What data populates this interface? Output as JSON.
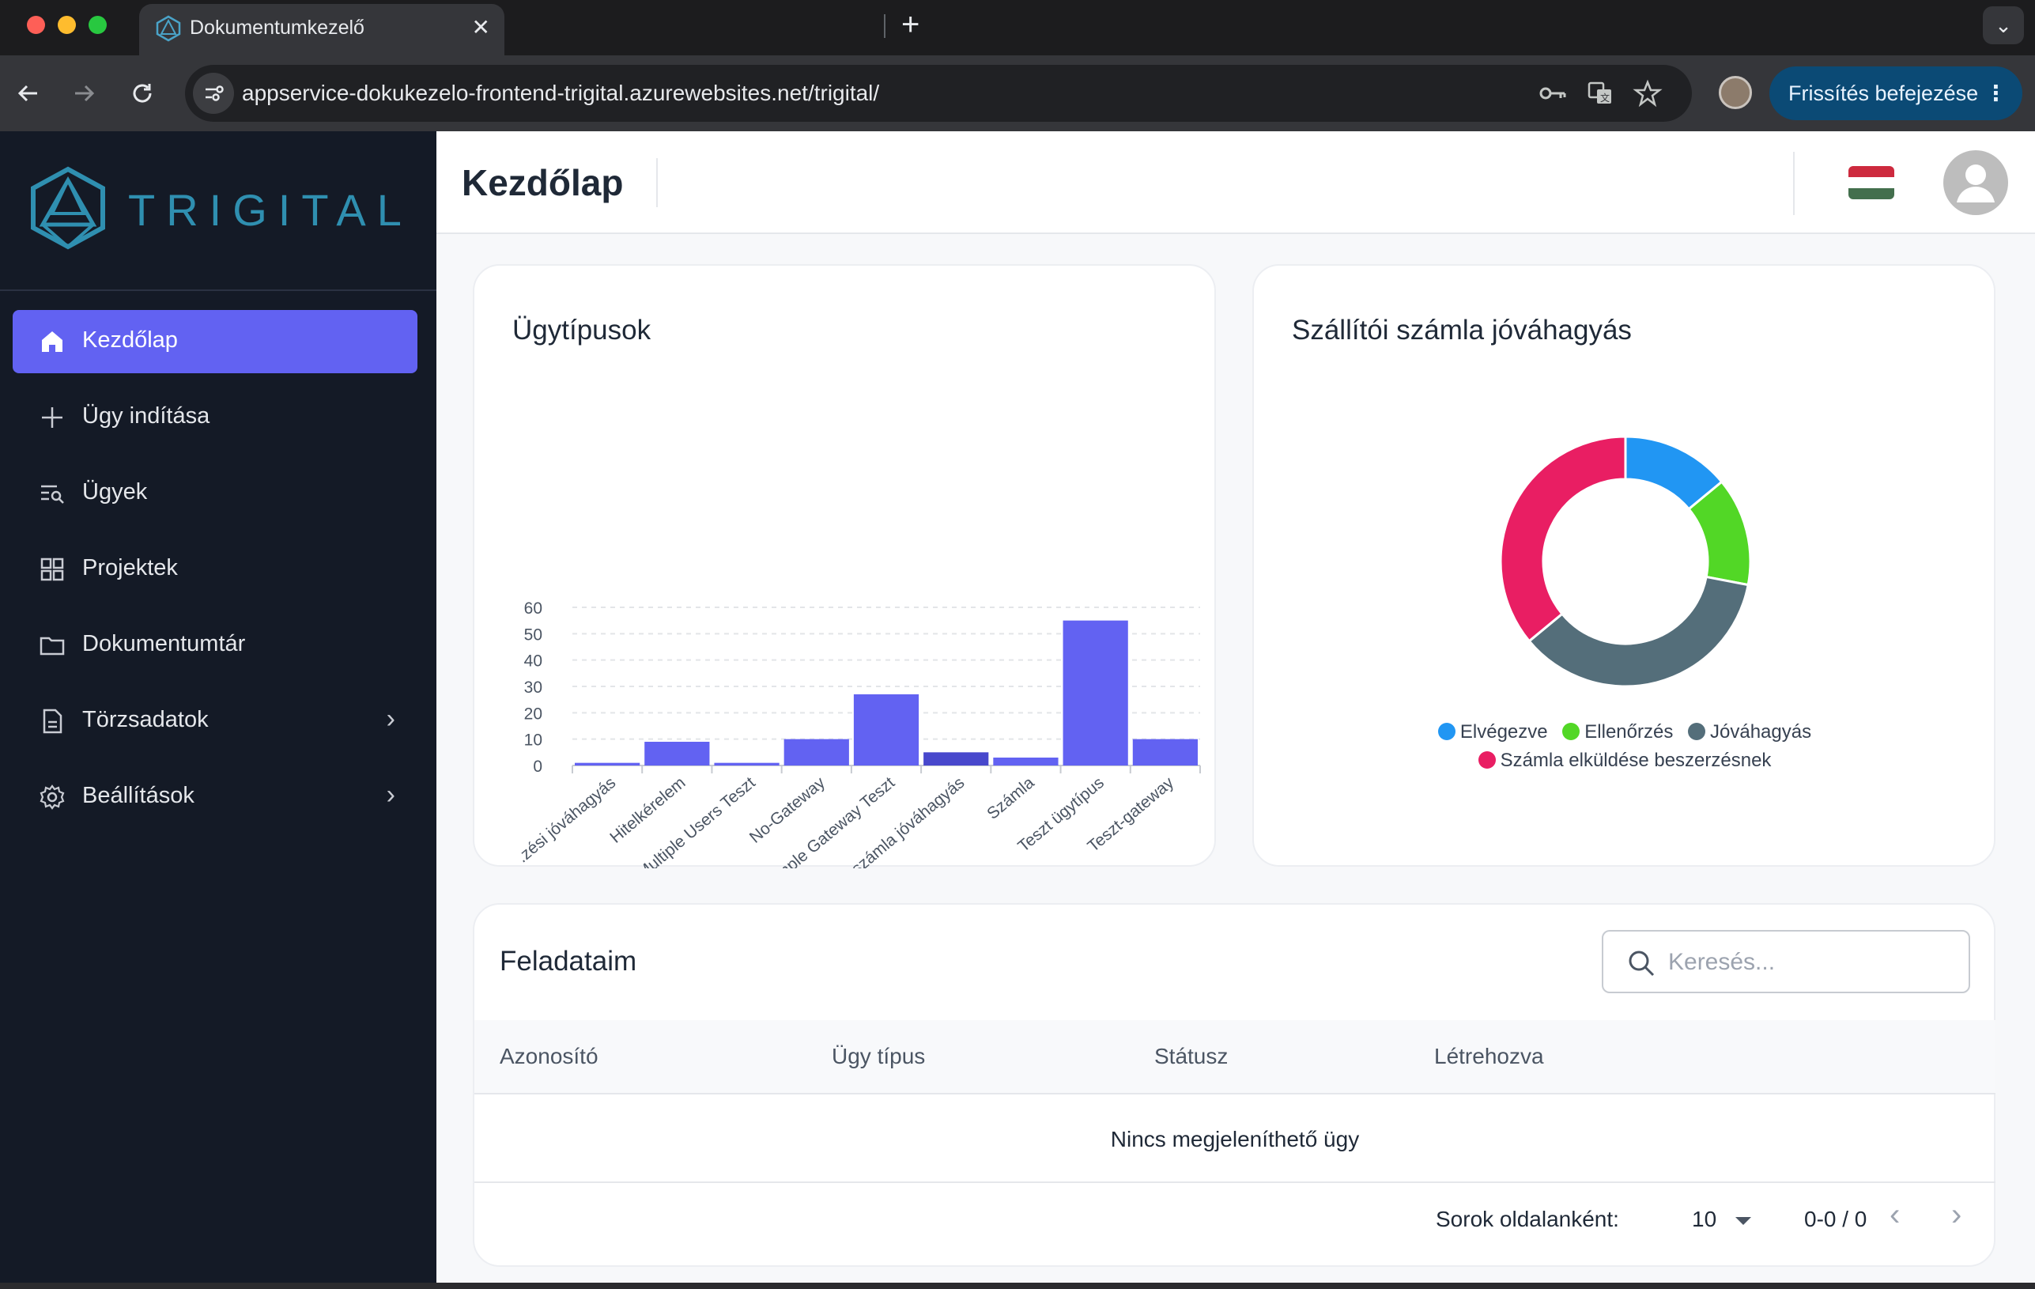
{
  "browser": {
    "tab_title": "Dokumentumkezelő",
    "tab_close": "✕",
    "new_tab": "+",
    "tab_list": "⌄",
    "url_domain": "appservice-dokukezelo-frontend-trigital.azurewebsites.net",
    "url_path": "/trigital/",
    "update_label": "Frissítés befejezése",
    "update_menu": "⋮"
  },
  "sidebar": {
    "logo_text": "TRIGITAL",
    "items": [
      {
        "label": "Kezdőlap",
        "icon": "home-icon",
        "active": true
      },
      {
        "label": "Ügy indítása",
        "icon": "plus-icon"
      },
      {
        "label": "Ügyek",
        "icon": "list-search-icon"
      },
      {
        "label": "Projektek",
        "icon": "grid-icon"
      },
      {
        "label": "Dokumentumtár",
        "icon": "folder-icon"
      },
      {
        "label": "Törzsadatok",
        "icon": "document-icon",
        "chevron": "›"
      },
      {
        "label": "Beállítások",
        "icon": "gear-icon",
        "chevron": "›"
      }
    ]
  },
  "header": {
    "title": "Kezdőlap",
    "flag_colors": [
      "#cd2a3e",
      "#ffffff",
      "#436f4d"
    ]
  },
  "cards": {
    "bar_title": "Ügytípusok",
    "donut_title": "Szállítói számla jóváhagyás"
  },
  "chart_data": [
    {
      "type": "bar",
      "title": "Ügytípusok",
      "categories": [
        ".zési jóváhagyás",
        "Hitelkérelem",
        "Multiple Users Teszt",
        "No-Gateway",
        "Simple Gateway Teszt",
        "Szállítói számla jóváhagyás",
        "Számla",
        "Teszt ügytípus",
        "Teszt-gateway"
      ],
      "values": [
        1,
        9,
        1,
        10,
        27,
        5,
        3,
        55,
        10
      ],
      "ylim": [
        0,
        60
      ],
      "yticks": [
        0,
        10,
        20,
        30,
        40,
        50,
        60
      ],
      "grid": true,
      "colors": [
        "#6262f2",
        "#6262f2",
        "#6262f2",
        "#6262f2",
        "#6262f2",
        "#4848cc",
        "#6262f2",
        "#6262f2",
        "#6262f2"
      ]
    },
    {
      "type": "pie",
      "title": "Szállítói számla jóváhagyás",
      "donut": true,
      "labels": [
        "Elvégezve",
        "Ellenőrzés",
        "Jóváhagyás",
        "Számla elküldése beszerzésnek"
      ],
      "values": [
        14,
        14,
        36,
        36
      ],
      "colors": [
        "#2196f3",
        "#52d726",
        "#546e7a",
        "#e91e63"
      ],
      "legend": "bottom"
    }
  ],
  "tasks": {
    "title": "Feladataim",
    "search_placeholder": "Keresés...",
    "columns": [
      "Azonosító",
      "Ügy típus",
      "Státusz",
      "Létrehozva"
    ],
    "empty_text": "Nincs megjeleníthető ügy",
    "rows_per_page_label": "Sorok oldalanként:",
    "rows_per_page": "10",
    "range": "0-0 / 0",
    "prev": "‹",
    "next": "›"
  }
}
